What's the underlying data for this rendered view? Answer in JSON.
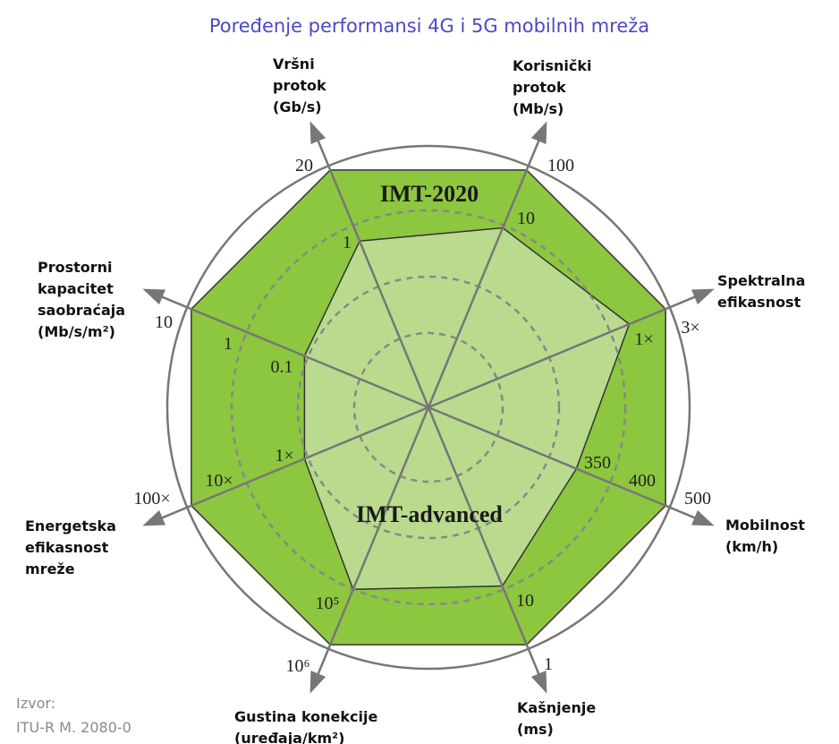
{
  "title": "Poređenje performansi 4G i 5G mobilnih mreža",
  "source": {
    "label": "Izvor:",
    "value": "ITU-R M. 2080-0"
  },
  "colors": {
    "imt2020": "#8dc63f",
    "imt_advanced": "#badb8e",
    "axis": "#777777",
    "title": "#4b48c8"
  },
  "chart_data": {
    "type": "radar",
    "title": "Poređenje performansi 4G i 5G mobilnih mreža",
    "axes": [
      {
        "label": [
          "Vršni",
          "protok",
          "(Gb/s)"
        ],
        "ticks": [
          "20",
          "1"
        ]
      },
      {
        "label": [
          "Korisnički",
          "protok",
          "(Mb/s)"
        ],
        "ticks": [
          "100",
          "10"
        ]
      },
      {
        "label": [
          "Spektralna",
          "efikasnost"
        ],
        "ticks": [
          "3×",
          "1×"
        ]
      },
      {
        "label": [
          "Mobilnost",
          "(km/h)"
        ],
        "ticks": [
          "500",
          "400",
          "350"
        ]
      },
      {
        "label": [
          "Kašnjenje",
          "(ms)"
        ],
        "ticks": [
          "1",
          "10"
        ]
      },
      {
        "label": [
          "Gustina konekcije",
          "(uređaja/km²)"
        ],
        "ticks": [
          "10⁶",
          "10⁵"
        ]
      },
      {
        "label": [
          "Energetska",
          "efikasnost",
          "mreže"
        ],
        "ticks": [
          "100×",
          "10×",
          "1×"
        ]
      },
      {
        "label": [
          "Prostorni",
          "kapacitet",
          "saobraćaja",
          "(Mb/s/m²)"
        ],
        "ticks": [
          "10",
          "1",
          "0.1"
        ]
      }
    ],
    "series": [
      {
        "name": "IMT-2020",
        "values": [
          "20",
          "100",
          "3×",
          "500",
          "1",
          "10⁶",
          "100×",
          "10"
        ]
      },
      {
        "name": "IMT-advanced",
        "values": [
          "1",
          "10",
          "1×",
          "350",
          "10",
          "10⁵",
          "1×",
          "0.1"
        ]
      }
    ],
    "grid": "dashed circles"
  }
}
